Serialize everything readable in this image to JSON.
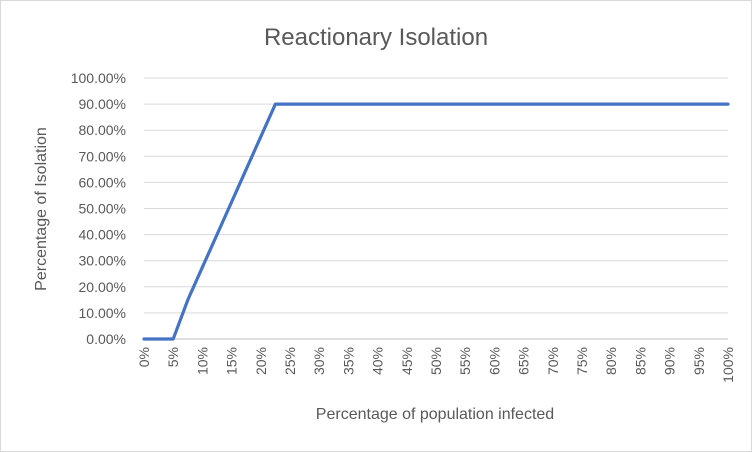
{
  "chart_data": {
    "type": "line",
    "title": "Reactionary Isolation",
    "xlabel": "Percentage of population infected",
    "ylabel": "Percentage of Isolation",
    "x_ticks": [
      "0%",
      "5%",
      "10%",
      "15%",
      "20%",
      "25%",
      "30%",
      "35%",
      "40%",
      "45%",
      "50%",
      "55%",
      "60%",
      "65%",
      "70%",
      "75%",
      "80%",
      "85%",
      "90%",
      "95%",
      "100%"
    ],
    "y_ticks": [
      "0.00%",
      "10.00%",
      "20.00%",
      "30.00%",
      "40.00%",
      "50.00%",
      "60.00%",
      "70.00%",
      "80.00%",
      "90.00%",
      "100.00%"
    ],
    "xlim": [
      0,
      100
    ],
    "ylim": [
      0,
      100
    ],
    "grid": "horizontal",
    "legend": "none",
    "series": [
      {
        "color": "#4472c4",
        "points": [
          [
            0,
            0
          ],
          [
            5,
            0
          ],
          [
            7.5,
            15
          ],
          [
            10,
            27.5
          ],
          [
            12.5,
            40
          ],
          [
            15,
            52.5
          ],
          [
            17.5,
            65
          ],
          [
            20,
            77.5
          ],
          [
            22.5,
            90
          ],
          [
            25,
            90
          ],
          [
            100,
            90
          ]
        ]
      }
    ]
  }
}
